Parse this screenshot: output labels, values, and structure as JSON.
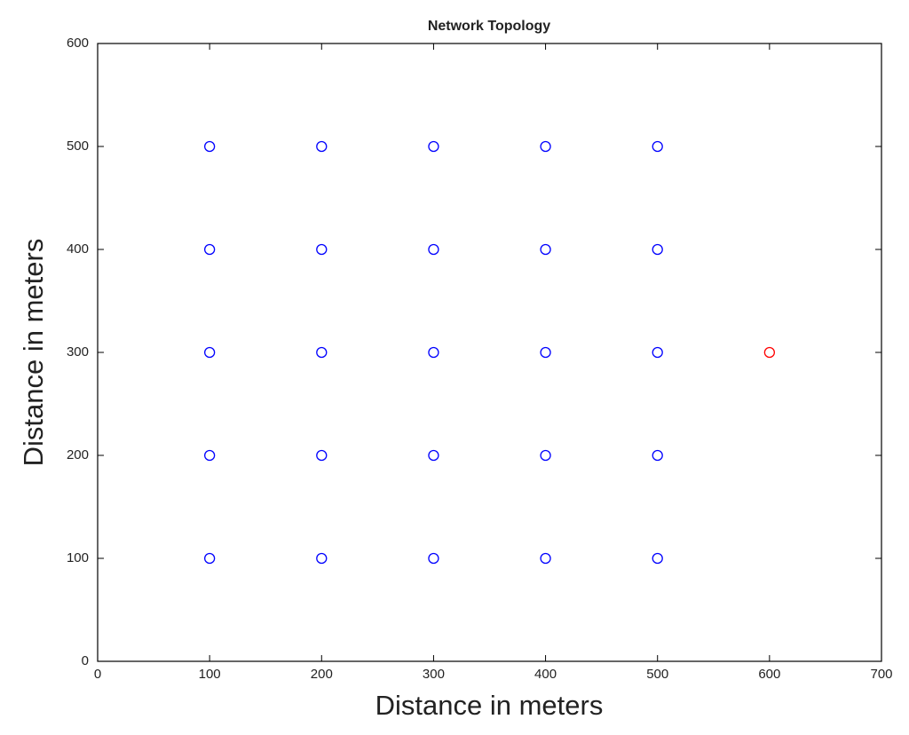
{
  "chart_data": {
    "type": "scatter",
    "title": "Network Topology",
    "x_label": "Distance in meters",
    "y_label": "Distance in meters",
    "xlim": [
      0,
      700
    ],
    "ylim": [
      0,
      600
    ],
    "xticks": [
      0,
      100,
      200,
      300,
      400,
      500,
      600,
      700
    ],
    "yticks": [
      0,
      100,
      200,
      300,
      400,
      500,
      600
    ],
    "grid": false,
    "series": [
      {
        "color": "#0000ff",
        "x": [
          100,
          200,
          300,
          400,
          500,
          100,
          200,
          300,
          400,
          500,
          100,
          200,
          300,
          400,
          500,
          100,
          200,
          300,
          400,
          500,
          100,
          200,
          300,
          400,
          500
        ],
        "y": [
          500,
          500,
          500,
          500,
          500,
          400,
          400,
          400,
          400,
          400,
          300,
          300,
          300,
          300,
          300,
          200,
          200,
          200,
          200,
          200,
          100,
          100,
          100,
          100,
          100
        ]
      },
      {
        "color": "#ff0000",
        "x": [
          600
        ],
        "y": [
          300
        ]
      }
    ]
  }
}
